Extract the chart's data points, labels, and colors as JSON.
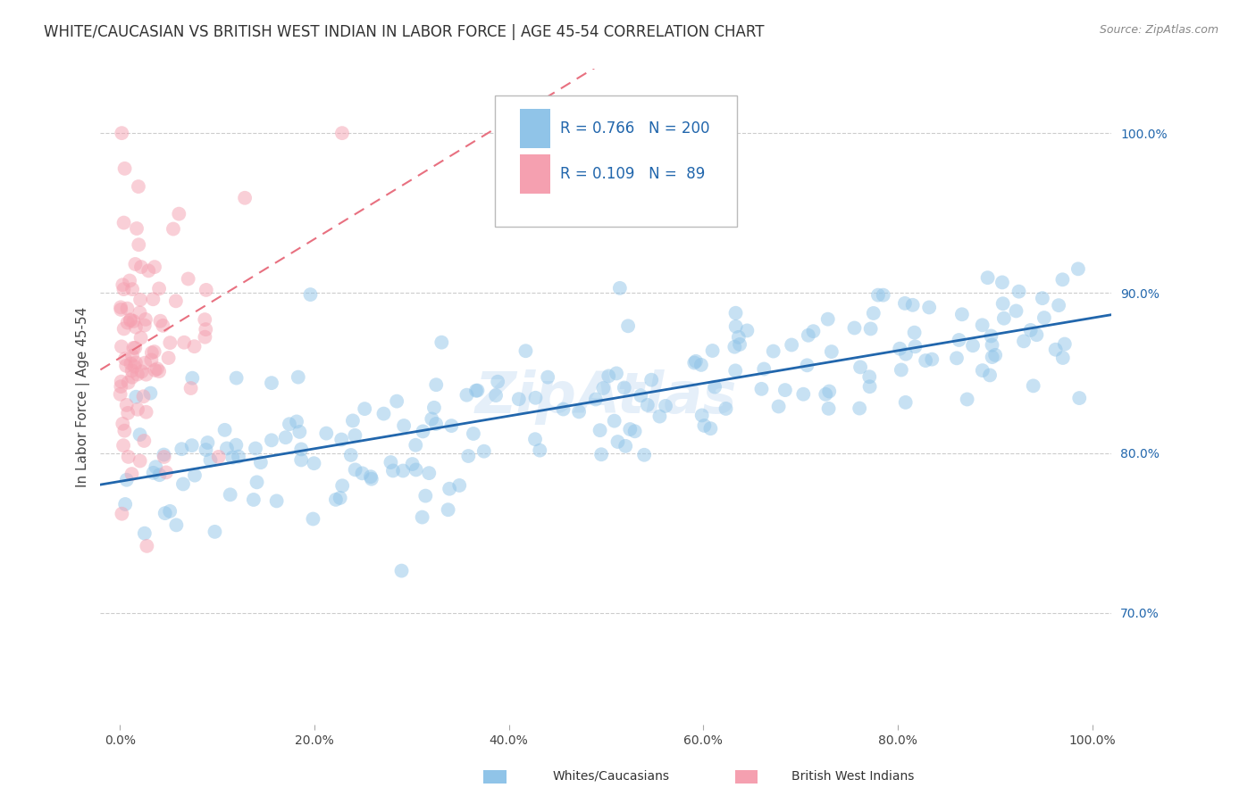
{
  "title": "WHITE/CAUCASIAN VS BRITISH WEST INDIAN IN LABOR FORCE | AGE 45-54 CORRELATION CHART",
  "source_text": "Source: ZipAtlas.com",
  "ylabel": "In Labor Force | Age 45-54",
  "x_tick_labels": [
    "0.0%",
    "20.0%",
    "40.0%",
    "60.0%",
    "80.0%",
    "100.0%"
  ],
  "x_tick_vals": [
    0,
    20,
    40,
    60,
    80,
    100
  ],
  "y_tick_labels": [
    "70.0%",
    "80.0%",
    "90.0%",
    "100.0%"
  ],
  "y_tick_vals": [
    70,
    80,
    90,
    100
  ],
  "xlim": [
    -2,
    102
  ],
  "ylim": [
    63,
    104
  ],
  "blue_R": 0.766,
  "blue_N": 200,
  "pink_R": 0.109,
  "pink_N": 89,
  "blue_color": "#90c4e8",
  "pink_color": "#f5a0b0",
  "blue_line_color": "#2166ac",
  "pink_line_color": "#e87080",
  "legend_label_blue": "Whites/Caucasians",
  "legend_label_pink": "British West Indians",
  "watermark": "ZipAtlas",
  "grid_color": "#cccccc",
  "background_color": "#ffffff",
  "title_fontsize": 12,
  "axis_label_fontsize": 11,
  "tick_fontsize": 10,
  "blue_scatter_alpha": 0.5,
  "pink_scatter_alpha": 0.5,
  "scatter_size": 130
}
